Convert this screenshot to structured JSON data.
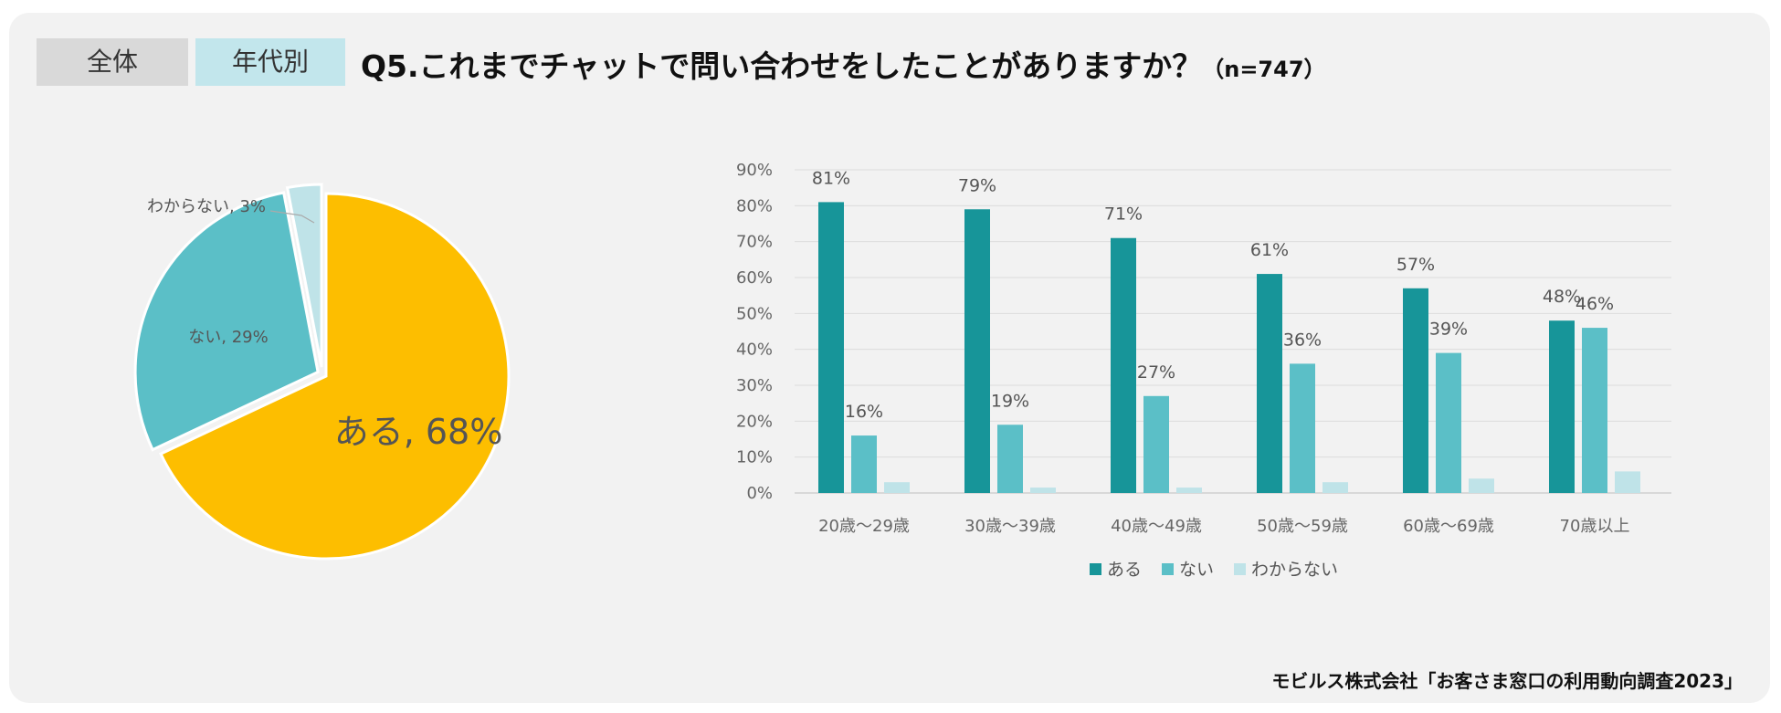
{
  "tabs": [
    {
      "label": "全体"
    },
    {
      "label": "年代別"
    }
  ],
  "header": {
    "title": "Q5.これまでチャットで問い合わせをしたことがありますか？",
    "n_label": "（n=747）"
  },
  "source": "モビルス株式会社「お客さま窓口の利用動向調査2023」",
  "colors": {
    "aru": "#179599",
    "nai": "#5bbfc7",
    "wakaranai": "#bfe3e8",
    "pie_aru": "#fdbe00"
  },
  "chart_data": [
    {
      "type": "pie",
      "slices": [
        {
          "label": "ある",
          "value": 68,
          "display": "ある, 68%"
        },
        {
          "label": "ない",
          "value": 29,
          "display": "ない, 29%"
        },
        {
          "label": "わからない",
          "value": 3,
          "display": "わからない, 3%"
        }
      ]
    },
    {
      "type": "bar",
      "categories": [
        "20歳～29歳",
        "30歳～39歳",
        "40歳～49歳",
        "50歳～59歳",
        "60歳～69歳",
        "70歳以上"
      ],
      "series": [
        {
          "name": "ある",
          "values": [
            81,
            79,
            71,
            61,
            57,
            48
          ],
          "labels": [
            "81%",
            "79%",
            "71%",
            "61%",
            "57%",
            "48%"
          ]
        },
        {
          "name": "ない",
          "values": [
            16,
            19,
            27,
            36,
            39,
            46
          ],
          "labels": [
            "16%",
            "19%",
            "27%",
            "36%",
            "39%",
            "46%"
          ]
        },
        {
          "name": "わからない",
          "values": [
            3,
            1.5,
            1.5,
            3,
            4,
            6
          ]
        }
      ],
      "ylim": [
        0,
        90
      ],
      "yticks": [
        "0%",
        "10%",
        "20%",
        "30%",
        "40%",
        "50%",
        "60%",
        "70%",
        "80%",
        "90%"
      ],
      "grid": true,
      "legend": "bottom"
    }
  ]
}
